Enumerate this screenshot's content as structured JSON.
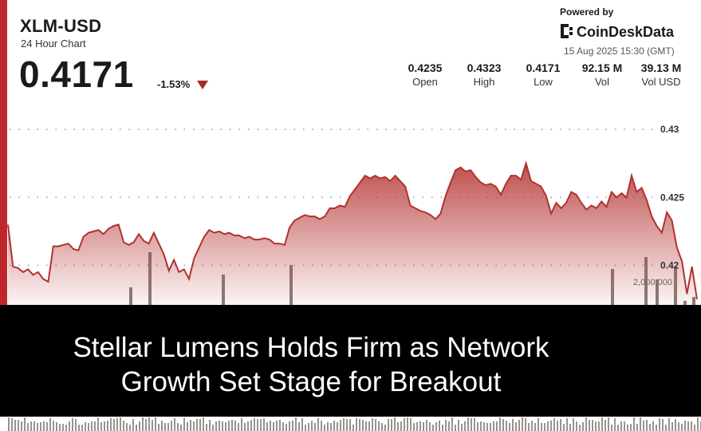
{
  "header": {
    "pair": "XLM-USD",
    "subtitle": "24 Hour Chart",
    "price": "0.4171",
    "change": "-1.53%",
    "change_icon": "down-triangle-icon"
  },
  "brand": {
    "powered_by": "Powered by",
    "name": "CoinDeskData",
    "logo_icon": "coindesk-logo-icon",
    "datetime": "15 Aug 2025 15:30 (GMT)"
  },
  "stats": [
    {
      "value": "0.4235",
      "label": "Open"
    },
    {
      "value": "0.4323",
      "label": "High"
    },
    {
      "value": "0.4171",
      "label": "Low"
    },
    {
      "value": "92.15 M",
      "label": "Vol"
    },
    {
      "value": "39.13 M",
      "label": "Vol USD"
    }
  ],
  "headline": {
    "line1": "Stellar Lumens Holds Firm as Network",
    "line2": "Growth Set Stage for Breakout"
  },
  "colors": {
    "accent": "#c0272d",
    "line": "#b2312f",
    "area_top": "#b2312f",
    "volume_bar": "#8a7f7a"
  },
  "chart_data": {
    "type": "area",
    "y_ticks": [
      "0.43",
      "0.425",
      "0.42"
    ],
    "volume_tick_label": "2,000,000",
    "ylim": [
      0.4175,
      0.4323
    ],
    "grid": "dotted horizontal",
    "values": [
      0.423,
      0.4199,
      0.4198,
      0.4195,
      0.4197,
      0.4193,
      0.4195,
      0.419,
      0.4188,
      0.4214,
      0.4214,
      0.4215,
      0.4216,
      0.4212,
      0.4211,
      0.4221,
      0.4224,
      0.4225,
      0.4226,
      0.4223,
      0.4227,
      0.4229,
      0.423,
      0.4217,
      0.4215,
      0.4217,
      0.4223,
      0.4218,
      0.4216,
      0.4224,
      0.4216,
      0.4208,
      0.4196,
      0.4204,
      0.4195,
      0.4197,
      0.419,
      0.4205,
      0.4213,
      0.4221,
      0.4226,
      0.4224,
      0.4225,
      0.4223,
      0.4224,
      0.4222,
      0.4222,
      0.422,
      0.4221,
      0.4219,
      0.4219,
      0.422,
      0.4219,
      0.4216,
      0.4216,
      0.4215,
      0.4228,
      0.4233,
      0.4235,
      0.4237,
      0.4236,
      0.4236,
      0.4234,
      0.4236,
      0.4242,
      0.4242,
      0.4244,
      0.4243,
      0.4251,
      0.4256,
      0.4261,
      0.4266,
      0.4264,
      0.4266,
      0.4264,
      0.4265,
      0.4262,
      0.4266,
      0.4262,
      0.4258,
      0.4244,
      0.4242,
      0.424,
      0.4239,
      0.4237,
      0.4234,
      0.4238,
      0.4251,
      0.4261,
      0.427,
      0.4272,
      0.4269,
      0.427,
      0.4265,
      0.4261,
      0.4259,
      0.426,
      0.4258,
      0.4252,
      0.426,
      0.4266,
      0.4266,
      0.4263,
      0.4275,
      0.4262,
      0.426,
      0.4258,
      0.4251,
      0.4238,
      0.4246,
      0.4242,
      0.4246,
      0.4254,
      0.4252,
      0.4246,
      0.4241,
      0.4244,
      0.4242,
      0.4247,
      0.4243,
      0.4254,
      0.425,
      0.4253,
      0.425,
      0.4266,
      0.4254,
      0.4257,
      0.4248,
      0.4236,
      0.4229,
      0.4224,
      0.4239,
      0.4233,
      0.4213,
      0.4203,
      0.4179,
      0.4199,
      0.4175
    ]
  }
}
